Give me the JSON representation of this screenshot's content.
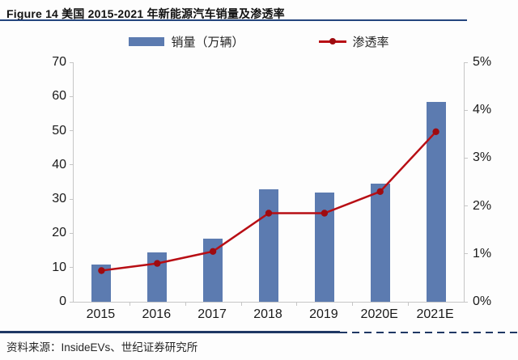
{
  "title": "Figure 14 美国 2015-2021 年新能源汽车销量及渗透率",
  "legend": {
    "items": [
      {
        "label": "销量（万辆）",
        "type": "bar",
        "color": "#5C7BB0"
      },
      {
        "label": "渗透率",
        "type": "line",
        "color": "#B80E14"
      }
    ]
  },
  "footer": {
    "source_text": "资料来源：InsideEVs、世纪证券研究所"
  },
  "colors": {
    "bar": "#5C7BB0",
    "line": "#B80E14",
    "marker": "#9E0B10",
    "rule_navy": "#1F3864",
    "axis_gray": "#C6C6C6"
  },
  "chart_data": {
    "type": "bar+line combo",
    "title": "美国 2015-2021 年新能源汽车销量及渗透率",
    "categories": [
      "2015",
      "2016",
      "2017",
      "2018",
      "2019",
      "2020E",
      "2021E"
    ],
    "series": [
      {
        "name": "销量（万辆）",
        "type": "bar",
        "axis": "left",
        "color": "#5C7BB0",
        "values": [
          11,
          14.5,
          18.5,
          33,
          32,
          34.5,
          58.5
        ]
      },
      {
        "name": "渗透率",
        "type": "line",
        "axis": "right",
        "color": "#B80E14",
        "values": [
          0.65,
          0.8,
          1.05,
          1.85,
          1.85,
          2.3,
          3.55
        ]
      }
    ],
    "left_axis": {
      "min": 0,
      "max": 70,
      "step": 10,
      "ticks": [
        "0",
        "10",
        "20",
        "30",
        "40",
        "50",
        "60",
        "70"
      ]
    },
    "right_axis": {
      "min": 0,
      "max": 5,
      "step": 1,
      "ticks": [
        "0%",
        "1%",
        "2%",
        "3%",
        "4%",
        "5%"
      ],
      "unit": "%"
    },
    "grid": false,
    "legend_position": "top"
  }
}
